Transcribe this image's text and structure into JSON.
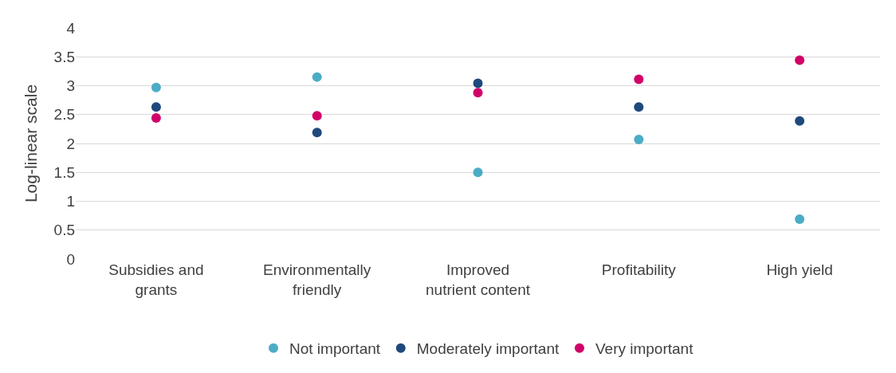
{
  "chart_data": {
    "type": "scatter",
    "ylabel": "Log-linear scale",
    "categories": [
      "Subsidies and grants",
      "Environmentally friendly",
      "Improved nutrient content",
      "Profitability",
      "High yield"
    ],
    "series": [
      {
        "name": "Not important",
        "color": "#4bacc6",
        "values": [
          2.97,
          3.15,
          1.5,
          2.07,
          0.69
        ]
      },
      {
        "name": "Moderately important",
        "color": "#1f497d",
        "values": [
          2.63,
          2.19,
          3.04,
          2.63,
          2.39
        ]
      },
      {
        "name": "Very important",
        "color": "#d10069",
        "values": [
          2.44,
          2.48,
          2.88,
          3.11,
          3.44
        ]
      }
    ],
    "ylim": [
      0,
      4
    ],
    "yticks": [
      0,
      0.5,
      1,
      1.5,
      2,
      2.5,
      3,
      3.5,
      4
    ],
    "grid": "y",
    "legend": "bottom",
    "marker": "circle"
  }
}
